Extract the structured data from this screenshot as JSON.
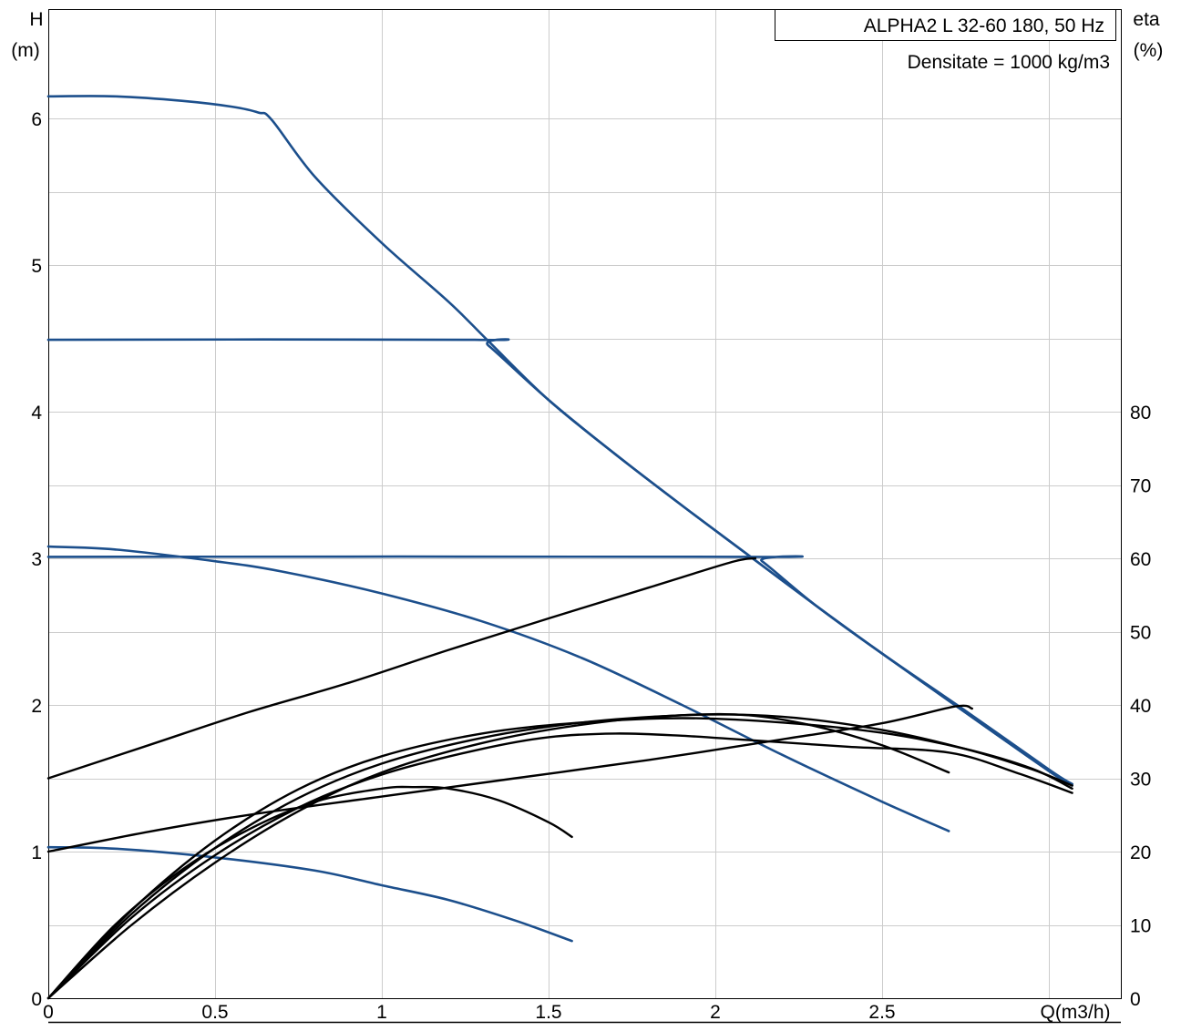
{
  "chart_data": {
    "type": "line",
    "title": "ALPHA2 L 32-60 180, 50 Hz",
    "subtitle": "Densitate = 1000 kg/m3",
    "left_axis": {
      "label_line1": "H",
      "label_line2": "(m)",
      "range": [
        0,
        6.5
      ],
      "ticks": [
        "0",
        "1",
        "2",
        "3",
        "4",
        "5",
        "6"
      ]
    },
    "right_axis": {
      "label_line1": "eta",
      "label_line2": "(%)",
      "range": [
        0,
        80
      ],
      "ticks": [
        "0",
        "10",
        "20",
        "30",
        "40",
        "50",
        "60",
        "70",
        "80"
      ]
    },
    "x_axis": {
      "label": "Q(m3/h)",
      "range": [
        0,
        3.2
      ],
      "ticks": [
        "0",
        "0.5",
        "1",
        "1.5",
        "2",
        "2.5"
      ]
    },
    "grid": true,
    "colors": {
      "head_curve": "#1c4f8c",
      "eta_curve": "#000000",
      "grid": "#cccccc"
    },
    "series": [
      {
        "kind": "head",
        "points": [
          [
            0,
            6.15
          ],
          [
            0.2,
            6.15
          ],
          [
            0.4,
            6.12
          ],
          [
            0.55,
            6.08
          ],
          [
            0.63,
            6.04
          ],
          [
            0.67,
            5.99
          ],
          [
            0.8,
            5.6
          ],
          [
            1.0,
            5.15
          ],
          [
            1.2,
            4.75
          ],
          [
            1.32,
            4.48
          ],
          [
            1.5,
            4.08
          ],
          [
            1.7,
            3.71
          ],
          [
            1.9,
            3.36
          ],
          [
            2.1,
            3.02
          ],
          [
            2.3,
            2.68
          ],
          [
            2.5,
            2.35
          ],
          [
            2.73,
            1.98
          ],
          [
            3.0,
            1.55
          ],
          [
            3.07,
            1.45
          ]
        ]
      },
      {
        "kind": "head",
        "points": [
          [
            0,
            4.49
          ],
          [
            1.28,
            4.49
          ],
          [
            1.32,
            4.45
          ],
          [
            1.5,
            4.08
          ],
          [
            1.7,
            3.71
          ],
          [
            1.9,
            3.36
          ],
          [
            2.1,
            3.02
          ],
          [
            2.3,
            2.68
          ],
          [
            2.5,
            2.35
          ],
          [
            2.73,
            1.98
          ],
          [
            3.0,
            1.55
          ],
          [
            3.07,
            1.46
          ]
        ]
      },
      {
        "kind": "head",
        "points": [
          [
            0,
            3.01
          ],
          [
            2.1,
            3.01
          ],
          [
            2.14,
            2.98
          ],
          [
            2.3,
            2.68
          ],
          [
            2.5,
            2.35
          ],
          [
            2.75,
            1.96
          ],
          [
            3.0,
            1.56
          ],
          [
            3.07,
            1.46
          ]
        ]
      },
      {
        "kind": "head",
        "points": [
          [
            0,
            3.08
          ],
          [
            0.2,
            3.06
          ],
          [
            0.5,
            2.98
          ],
          [
            0.7,
            2.91
          ],
          [
            1.0,
            2.76
          ],
          [
            1.3,
            2.57
          ],
          [
            1.6,
            2.32
          ],
          [
            1.9,
            2.0
          ],
          [
            2.2,
            1.66
          ],
          [
            2.5,
            1.34
          ],
          [
            2.7,
            1.14
          ]
        ]
      },
      {
        "kind": "head",
        "points": [
          [
            0,
            1.03
          ],
          [
            0.2,
            1.02
          ],
          [
            0.5,
            0.96
          ],
          [
            0.8,
            0.87
          ],
          [
            1.0,
            0.77
          ],
          [
            1.2,
            0.67
          ],
          [
            1.4,
            0.53
          ],
          [
            1.57,
            0.39
          ]
        ]
      },
      {
        "kind": "eta",
        "points": [
          [
            0,
            30
          ],
          [
            0.3,
            34.5
          ],
          [
            0.6,
            39
          ],
          [
            0.9,
            43
          ],
          [
            1.2,
            47.5
          ],
          [
            1.5,
            51.8
          ],
          [
            1.8,
            56
          ],
          [
            2.05,
            59.5
          ],
          [
            2.12,
            60.0
          ]
        ]
      },
      {
        "kind": "eta",
        "points": [
          [
            0,
            20
          ],
          [
            0.3,
            22.7
          ],
          [
            0.6,
            25
          ],
          [
            1.0,
            27.5
          ],
          [
            1.4,
            30
          ],
          [
            1.8,
            32.5
          ],
          [
            2.2,
            35.3
          ],
          [
            2.5,
            37.5
          ],
          [
            2.72,
            39.8
          ],
          [
            2.77,
            39.5
          ]
        ]
      },
      {
        "kind": "eta",
        "points": [
          [
            0,
            0
          ],
          [
            0.2,
            10
          ],
          [
            0.4,
            17.5
          ],
          [
            0.6,
            23
          ],
          [
            0.8,
            26.8
          ],
          [
            1.0,
            28.6
          ],
          [
            1.1,
            28.8
          ],
          [
            1.2,
            28.6
          ],
          [
            1.35,
            27
          ],
          [
            1.5,
            24
          ],
          [
            1.57,
            22
          ]
        ]
      },
      {
        "kind": "eta",
        "points": [
          [
            0,
            0
          ],
          [
            0.25,
            11
          ],
          [
            0.5,
            19.5
          ],
          [
            0.75,
            26
          ],
          [
            1.0,
            30.5
          ],
          [
            1.3,
            34
          ],
          [
            1.5,
            35.6
          ],
          [
            1.7,
            36.1
          ],
          [
            1.9,
            35.8
          ],
          [
            2.1,
            35.2
          ],
          [
            2.4,
            34.3
          ],
          [
            2.7,
            33.5
          ],
          [
            2.9,
            30.8
          ],
          [
            3.07,
            28
          ]
        ]
      },
      {
        "kind": "eta",
        "points": [
          [
            0,
            0
          ],
          [
            0.25,
            11.5
          ],
          [
            0.5,
            20.5
          ],
          [
            0.75,
            27.3
          ],
          [
            1.0,
            32
          ],
          [
            1.3,
            35.5
          ],
          [
            1.6,
            37.6
          ],
          [
            1.9,
            38.6
          ],
          [
            2.1,
            38.6
          ],
          [
            2.3,
            37.1
          ],
          [
            2.5,
            34.5
          ],
          [
            2.7,
            30.8
          ]
        ]
      },
      {
        "kind": "eta",
        "points": [
          [
            0,
            0
          ],
          [
            0.25,
            10
          ],
          [
            0.5,
            18.5
          ],
          [
            0.75,
            25.5
          ],
          [
            1.0,
            30.8
          ],
          [
            1.3,
            34.8
          ],
          [
            1.6,
            37.3
          ],
          [
            1.9,
            38.6
          ],
          [
            2.2,
            38.4
          ],
          [
            2.5,
            36.6
          ],
          [
            2.75,
            34.0
          ],
          [
            2.95,
            31.2
          ],
          [
            3.07,
            29
          ]
        ]
      },
      {
        "kind": "eta",
        "points": [
          [
            0,
            0
          ],
          [
            0.25,
            12
          ],
          [
            0.5,
            21.5
          ],
          [
            0.75,
            28.5
          ],
          [
            1.0,
            33
          ],
          [
            1.3,
            36.1
          ],
          [
            1.6,
            37.6
          ],
          [
            1.9,
            38.2
          ],
          [
            2.2,
            37.6
          ],
          [
            2.5,
            36.2
          ],
          [
            2.75,
            34.0
          ],
          [
            2.95,
            31.3
          ],
          [
            3.07,
            28.6
          ]
        ]
      }
    ]
  }
}
